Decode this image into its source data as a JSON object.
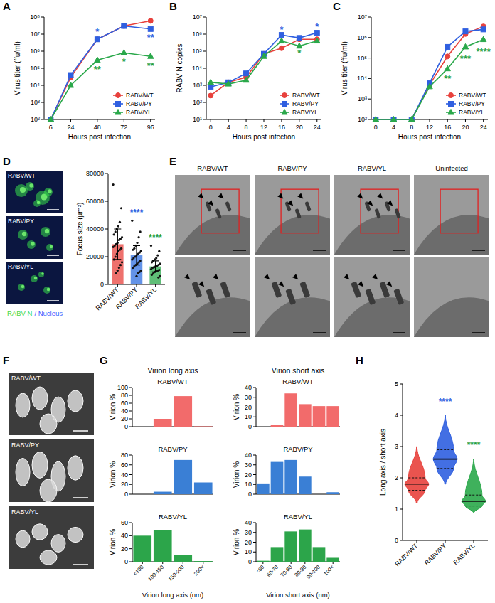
{
  "panel_labels": [
    "A",
    "B",
    "C",
    "D",
    "E",
    "F",
    "G",
    "H"
  ],
  "images": {
    "D": {
      "labels": [
        "RABV/WT",
        "RABV/PY",
        "RABV/YL"
      ],
      "stain_labels": [
        {
          "text": "RABV N",
          "color": "#3fd94a"
        },
        {
          "text": "/ Nucleus",
          "color": "#3a5cff"
        }
      ]
    },
    "E": {
      "labels": [
        "RABV/WT",
        "RABV/PY",
        "RABV/YL",
        "Uninfected"
      ]
    },
    "F": {
      "labels": [
        "RABV/WT",
        "RABV/PY",
        "RABV/YL"
      ]
    }
  },
  "chart_data": [
    {
      "type": "line",
      "log": "y",
      "xlabel": "Hours post infection",
      "ylabel": "Virus titer (ffu/ml)",
      "legend": "lower right",
      "x": [
        6,
        24,
        48,
        72,
        96
      ],
      "xlim": [
        0,
        100
      ],
      "xticks": [
        6,
        24,
        48,
        72,
        96
      ],
      "ylim": [
        100,
        100000000
      ],
      "yticks": [
        {
          "value": 100,
          "label": "10²"
        },
        {
          "value": 1000,
          "label": "10³"
        },
        {
          "value": 10000,
          "label": "10⁴"
        },
        {
          "value": 100000,
          "label": "10⁵"
        },
        {
          "value": 1000000,
          "label": "10⁶"
        },
        {
          "value": 10000000,
          "label": "10⁷"
        },
        {
          "value": 100000000,
          "label": "10⁸"
        }
      ],
      "series": [
        {
          "name": "RABV/WT",
          "color": "#e8413c",
          "marker": "circle",
          "values": [
            100,
            30000,
            5000000,
            30000000,
            60000000
          ]
        },
        {
          "name": "RABV/PY",
          "color": "#2f5fe0",
          "marker": "square",
          "values": [
            100,
            40000,
            5000000,
            30000000,
            20000000
          ]
        },
        {
          "name": "RABV/YL",
          "color": "#2aa84a",
          "marker": "triangle",
          "values": [
            100,
            10000,
            300000,
            800000,
            500000
          ]
        }
      ],
      "annotations": [
        {
          "text": "*",
          "x": 48,
          "y": 15000000,
          "color": "#2f5fe0"
        },
        {
          "text": "**",
          "x": 96,
          "y": 7000000,
          "color": "#2f5fe0"
        },
        {
          "text": "**",
          "x": 48,
          "y": 90000,
          "color": "#1fa03f"
        },
        {
          "text": "*",
          "x": 72,
          "y": 250000,
          "color": "#1fa03f"
        },
        {
          "text": "**",
          "x": 96,
          "y": 150000,
          "color": "#1fa03f"
        }
      ]
    },
    {
      "type": "line",
      "log": "y",
      "xlabel": "Hours post infection",
      "ylabel": "RABV N copies",
      "legend": "lower right",
      "x": [
        0,
        4,
        8,
        12,
        16,
        20,
        24
      ],
      "xlim": [
        -1,
        25
      ],
      "xticks": [
        0,
        4,
        8,
        12,
        16,
        20,
        24
      ],
      "ylim": [
        10,
        10000000
      ],
      "yticks": [
        {
          "value": 10,
          "label": "10¹"
        },
        {
          "value": 100,
          "label": "10²"
        },
        {
          "value": 1000,
          "label": "10³"
        },
        {
          "value": 10000,
          "label": "10⁴"
        },
        {
          "value": 100000,
          "label": "10⁵"
        },
        {
          "value": 1000000,
          "label": "10⁶"
        },
        {
          "value": 10000000,
          "label": "10⁷"
        }
      ],
      "series": [
        {
          "name": "RABV/WT",
          "color": "#e8413c",
          "marker": "circle",
          "values": [
            250,
            1500,
            3000,
            70000,
            150000,
            500000,
            500000
          ]
        },
        {
          "name": "RABV/PY",
          "color": "#2f5fe0",
          "marker": "square",
          "values": [
            800,
            1500,
            5000,
            70000,
            900000,
            600000,
            1200000
          ]
        },
        {
          "name": "RABV/YL",
          "color": "#2aa84a",
          "marker": "triangle",
          "values": [
            1500,
            1200,
            2000,
            50000,
            400000,
            200000,
            400000
          ]
        }
      ],
      "annotations": [
        {
          "text": "*",
          "x": 16,
          "y": 2000000,
          "color": "#2f5fe0"
        },
        {
          "text": "*",
          "x": 24,
          "y": 3000000,
          "color": "#2f5fe0"
        },
        {
          "text": "*",
          "x": 20,
          "y": 80000,
          "color": "#1fa03f"
        }
      ]
    },
    {
      "type": "line",
      "log": "y",
      "xlabel": "Hours post infection",
      "ylabel": "Virus titer (ffu/ml)",
      "legend": "lower right",
      "x": [
        0,
        4,
        8,
        12,
        16,
        20,
        24
      ],
      "xlim": [
        -1,
        25
      ],
      "xticks": [
        0,
        4,
        8,
        12,
        16,
        20,
        24
      ],
      "ylim": [
        100,
        10000000
      ],
      "yticks": [
        {
          "value": 100,
          "label": "10²"
        },
        {
          "value": 1000,
          "label": "10³"
        },
        {
          "value": 10000,
          "label": "10⁴"
        },
        {
          "value": 100000,
          "label": "10⁵"
        },
        {
          "value": 1000000,
          "label": "10⁶"
        },
        {
          "value": 10000000,
          "label": "10⁷"
        }
      ],
      "series": [
        {
          "name": "RABV/WT",
          "color": "#e8413c",
          "marker": "circle",
          "values": [
            100,
            100,
            100,
            5000,
            120000,
            1500000,
            3500000
          ]
        },
        {
          "name": "RABV/PY",
          "color": "#2f5fe0",
          "marker": "square",
          "values": [
            100,
            100,
            100,
            6000,
            350000,
            2000000,
            2500000
          ]
        },
        {
          "name": "RABV/YL",
          "color": "#2aa84a",
          "marker": "triangle",
          "values": [
            100,
            100,
            100,
            4000,
            30000,
            350000,
            800000
          ]
        }
      ],
      "annotations": [
        {
          "text": "**",
          "x": 16,
          "y": 10000,
          "color": "#1fa03f"
        },
        {
          "text": "***",
          "x": 20,
          "y": 100000,
          "color": "#1fa03f"
        },
        {
          "text": "****",
          "x": 24,
          "y": 220000,
          "color": "#1fa03f"
        }
      ]
    },
    {
      "type": "bar",
      "ylabel": "Focus size (µm²)",
      "categories": [
        "RABV/WT",
        "RABV/PY",
        "RABV/YL"
      ],
      "values": [
        29000,
        21000,
        13000
      ],
      "errors": [
        11000,
        7000,
        4000
      ],
      "colors": [
        "#e8413c",
        "#2f6fe0",
        "#2aa84a"
      ],
      "points": [
        [
          72000,
          55000,
          45000,
          42000,
          40000,
          38000,
          36000,
          34000,
          33000,
          32000,
          30000,
          29000,
          28000,
          27000,
          26000,
          25000,
          24000,
          22000,
          20000,
          18000,
          16000,
          14000,
          12000,
          10000,
          8000
        ],
        [
          46000,
          38000,
          34000,
          30000,
          28000,
          26000,
          25000,
          24000,
          23000,
          22000,
          21000,
          20000,
          19000,
          18000,
          17000,
          16000,
          15000,
          14000,
          13000,
          12000,
          10000,
          9000,
          8000,
          6000
        ],
        [
          28000,
          24000,
          21000,
          19000,
          18000,
          17000,
          16000,
          15000,
          14000,
          13500,
          13000,
          12500,
          12000,
          11000,
          10500,
          10000,
          9500,
          9000,
          8000,
          7000,
          6000,
          5000
        ]
      ],
      "ylim": [
        0,
        80000
      ],
      "yticks": [
        0,
        20000,
        40000,
        60000,
        80000
      ],
      "annotations": [
        {
          "text": "****",
          "x": "RABV/PY",
          "y": 50000,
          "color": "#2f5fe0"
        },
        {
          "text": "****",
          "x": "RABV/YL",
          "y": 32000,
          "color": "#1fa03f"
        }
      ]
    },
    {
      "type": "bar",
      "title": "RABV/WT",
      "subtitle": "Virion long axis",
      "ylabel": "Virion %",
      "tick_labels": "y",
      "categories": [
        "<100",
        "100-150",
        "150-200",
        "200<"
      ],
      "values": [
        0,
        20,
        78,
        1
      ],
      "color": "#f26b6b",
      "ylim": [
        0,
        100
      ],
      "yticks": [
        0,
        20,
        40,
        60,
        80,
        100
      ]
    },
    {
      "type": "bar",
      "title": "RABV/WT",
      "subtitle": "Virion short axis",
      "ylabel": "Virion %",
      "tick_labels": "y",
      "categories": [
        "<60",
        "60-70",
        "70-80",
        "80-90",
        "90-100",
        "100<"
      ],
      "values": [
        0,
        2,
        34,
        23,
        21,
        21
      ],
      "color": "#f26b6b",
      "ylim": [
        0,
        40
      ],
      "yticks": [
        0,
        10,
        20,
        30,
        40
      ]
    },
    {
      "type": "bar",
      "title": "RABV/PY",
      "ylabel": "Virion %",
      "tick_labels": "y",
      "categories": [
        "<100",
        "100-150",
        "150-200",
        "200<"
      ],
      "values": [
        0,
        5,
        70,
        24
      ],
      "color": "#3a7fd5",
      "ylim": [
        0,
        80
      ],
      "yticks": [
        0,
        20,
        40,
        60,
        80
      ]
    },
    {
      "type": "bar",
      "title": "RABV/PY",
      "ylabel": "Virion %",
      "tick_labels": "y",
      "categories": [
        "<60",
        "60-70",
        "70-80",
        "80-90",
        "90-100",
        "100<"
      ],
      "values": [
        11,
        33,
        35,
        18,
        0,
        2
      ],
      "color": "#3a7fd5",
      "ylim": [
        0,
        40
      ],
      "yticks": [
        0,
        10,
        20,
        30,
        40
      ]
    },
    {
      "type": "bar",
      "title": "RABV/YL",
      "ylabel": "Virion %",
      "xlabel": "Virion long axis (nm)",
      "categories": [
        "<100",
        "100-150",
        "150-200",
        "200<"
      ],
      "values": [
        40,
        49,
        10,
        1
      ],
      "color": "#2ca54a",
      "ylim": [
        0,
        60
      ],
      "yticks": [
        0,
        20,
        40,
        60
      ]
    },
    {
      "type": "bar",
      "title": "RABV/YL",
      "ylabel": "Virion %",
      "xlabel": "Virion short axis (nm)",
      "categories": [
        "<60",
        "60-70",
        "70-80",
        "80-90",
        "90-100",
        "100<"
      ],
      "values": [
        1,
        15,
        31,
        33,
        15,
        4
      ],
      "color": "#2ca54a",
      "ylim": [
        0,
        40
      ],
      "yticks": [
        0,
        10,
        20,
        30,
        40
      ]
    },
    {
      "type": "violin",
      "ylabel": "Long axis / short axis",
      "categories": [
        "RABV/WT",
        "RABV/PY",
        "RABV/YL"
      ],
      "colors": [
        "#e8413c",
        "#2f5fe0",
        "#2aa84a"
      ],
      "values": [
        1.8,
        2.6,
        1.25
      ],
      "q1": [
        1.6,
        2.3,
        1.1
      ],
      "q3": [
        2.0,
        2.9,
        1.45
      ],
      "min": [
        1.2,
        1.8,
        0.9
      ],
      "max": [
        3.0,
        4.0,
        2.6
      ],
      "ylim": [
        0,
        5
      ],
      "yticks": [
        0,
        1,
        2,
        3,
        4,
        5
      ],
      "annotations": [
        {
          "text": "****",
          "x": "RABV/PY",
          "y": 4.35,
          "color": "#2f5fe0"
        },
        {
          "text": "****",
          "x": "RABV/YL",
          "y": 2.95,
          "color": "#1fa03f"
        }
      ]
    }
  ]
}
